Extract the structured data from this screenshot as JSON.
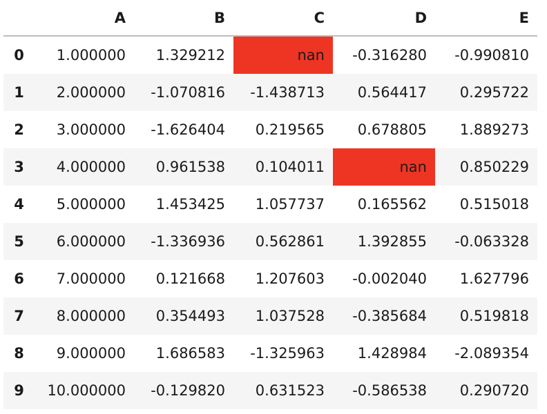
{
  "table": {
    "columns": [
      "A",
      "B",
      "C",
      "D",
      "E"
    ],
    "index": [
      "0",
      "1",
      "2",
      "3",
      "4",
      "5",
      "6",
      "7",
      "8",
      "9"
    ],
    "rows": [
      [
        "1.000000",
        "1.329212",
        "nan",
        "-0.316280",
        "-0.990810"
      ],
      [
        "2.000000",
        "-1.070816",
        "-1.438713",
        "0.564417",
        "0.295722"
      ],
      [
        "3.000000",
        "-1.626404",
        "0.219565",
        "0.678805",
        "1.889273"
      ],
      [
        "4.000000",
        "0.961538",
        "0.104011",
        "nan",
        "0.850229"
      ],
      [
        "5.000000",
        "1.453425",
        "1.057737",
        "0.165562",
        "0.515018"
      ],
      [
        "6.000000",
        "-1.336936",
        "0.562861",
        "1.392855",
        "-0.063328"
      ],
      [
        "7.000000",
        "0.121668",
        "1.207603",
        "-0.002040",
        "1.627796"
      ],
      [
        "8.000000",
        "0.354493",
        "1.037528",
        "-0.385684",
        "0.519818"
      ],
      [
        "9.000000",
        "1.686583",
        "-1.325963",
        "1.428984",
        "-2.089354"
      ],
      [
        "10.000000",
        "-0.129820",
        "0.631523",
        "-0.586538",
        "0.290720"
      ]
    ],
    "highlight": {
      "color": "#ee3524",
      "cells": [
        [
          0,
          2
        ],
        [
          3,
          3
        ]
      ]
    }
  }
}
